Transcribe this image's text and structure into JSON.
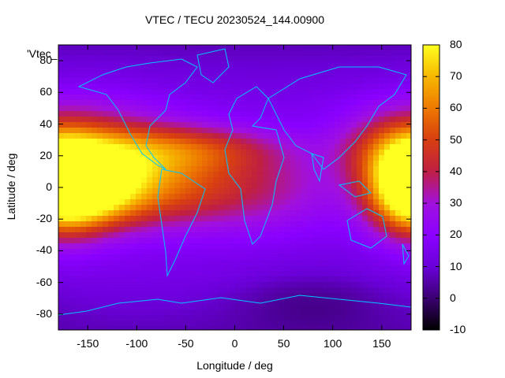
{
  "title": "VTEC / TECU 20230524_144.00900",
  "legend_key": "'Vtec_",
  "chart_data": {
    "type": "heatmap",
    "title": "VTEC / TECU 20230524_144.00900",
    "xlabel": "Longitude / deg",
    "ylabel": "Latitude / deg",
    "xlim": [
      -180,
      180
    ],
    "ylim": [
      -90,
      90
    ],
    "x_ticks": [
      -150,
      -100,
      -50,
      0,
      50,
      100,
      150
    ],
    "y_ticks": [
      -80,
      -60,
      -40,
      -20,
      0,
      20,
      40,
      60,
      80
    ],
    "colorbar": {
      "range": [
        -10,
        80
      ],
      "ticks": [
        -10,
        0,
        10,
        20,
        30,
        40,
        50,
        60,
        70,
        80
      ]
    },
    "hotspots": [
      {
        "lon": -150,
        "lat": 0,
        "value": 75
      },
      {
        "lon": 178,
        "lat": 0,
        "value": 70
      },
      {
        "lon": 0,
        "lat": 0,
        "value": 45
      }
    ]
  }
}
